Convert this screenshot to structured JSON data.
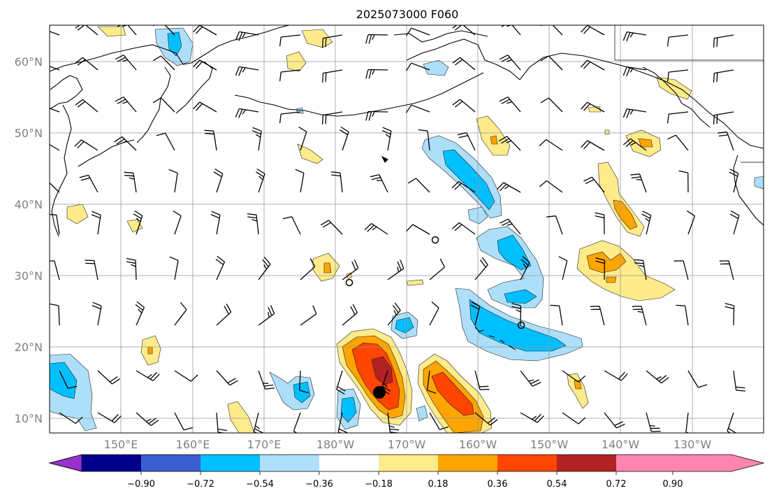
{
  "title": "2025073000 F060",
  "lat_labels": [
    "10°N",
    "20°N",
    "30°N",
    "40°N",
    "50°N",
    "60°N"
  ],
  "lon_labels": [
    "150°E",
    "160°E",
    "170°E",
    "180°W",
    "170°W",
    "160°W",
    "150°W",
    "140°W",
    "130°W"
  ],
  "colorbar": {
    "tick_labels": [
      "−0.90",
      "−0.72",
      "−0.54",
      "−0.36",
      "−0.18",
      "0.18",
      "0.36",
      "0.54",
      "0.72",
      "0.90"
    ],
    "colors": [
      "#9932CC",
      "#00008B",
      "#3A5ECF",
      "#00BFFF",
      "#ADDFFA",
      "#FFFFFF",
      "#FFEB8A",
      "#FFA500",
      "#FF4500",
      "#B22222",
      "#FF85B0"
    ]
  },
  "chart_data": {
    "type": "map",
    "projection": "plate carree",
    "extent": {
      "lon_min": 140,
      "lon_max": 240,
      "lat_min": 8,
      "lat_max": 65
    },
    "grid": true,
    "levels": [
      -0.9,
      -0.72,
      -0.54,
      -0.36,
      -0.18,
      0.18,
      0.36,
      0.54,
      0.72,
      0.9
    ],
    "centers": [
      {
        "lon": 186.5,
        "lat": 13.5,
        "marker": "filled-dot"
      },
      {
        "lon": 193.5,
        "lat": 35,
        "marker": "open-circle"
      },
      {
        "lon": 182,
        "lat": 29,
        "marker": "open-circle"
      },
      {
        "lon": 207,
        "lat": 23,
        "marker": "open-circle"
      }
    ]
  }
}
